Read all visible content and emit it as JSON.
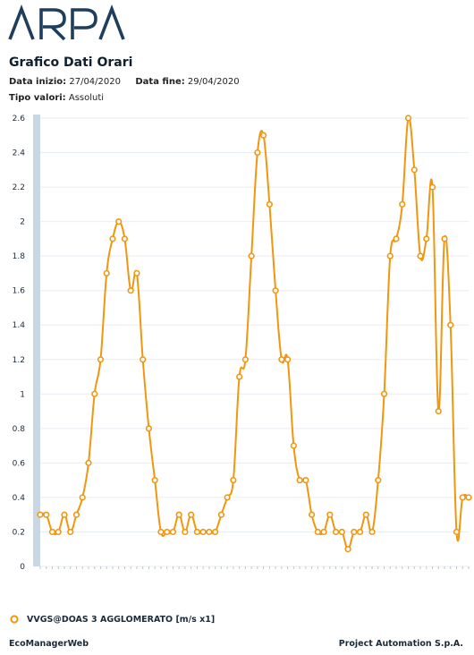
{
  "header": {
    "logo_text": "ARPA",
    "title": "Grafico Dati Orari",
    "start_label": "Data inizio:",
    "start_value": "27/04/2020",
    "end_label": "Data fine:",
    "end_value": "29/04/2020",
    "type_label": "Tipo valori:",
    "type_value": "Assoluti"
  },
  "colors": {
    "series": "#f2960f",
    "grid": "#e6eef5",
    "axis_band": "#c9d7e4",
    "text": "#1a2a3a"
  },
  "chart_data": {
    "type": "line",
    "title": "",
    "xlabel": "",
    "ylabel": "",
    "ylim": [
      0,
      2.6
    ],
    "yticks": [
      "0",
      "0.2",
      "0.4",
      "0.6",
      "0.8",
      "1",
      "1.2",
      "1.4",
      "1.6",
      "1.8",
      "2",
      "2.2",
      "2.4",
      "2.6"
    ],
    "grid": true,
    "legend_position": "bottom-left",
    "x_start": "27/04/2020 00:00",
    "x_step": "1 hour",
    "series": [
      {
        "name": "VVGS@DOAS 3 AGGLOMERATO [m/s x1]",
        "values": [
          0.3,
          0.3,
          0.2,
          0.2,
          0.3,
          0.2,
          0.3,
          0.4,
          0.6,
          1.0,
          1.2,
          1.7,
          1.9,
          2.0,
          1.9,
          1.6,
          1.7,
          1.2,
          0.8,
          0.5,
          0.2,
          0.2,
          0.2,
          0.3,
          0.2,
          0.3,
          0.2,
          0.2,
          0.2,
          0.2,
          0.3,
          0.4,
          0.5,
          1.1,
          1.2,
          1.8,
          2.4,
          2.5,
          2.1,
          1.6,
          1.2,
          1.2,
          0.7,
          0.5,
          0.5,
          0.3,
          0.2,
          0.2,
          0.3,
          0.2,
          0.2,
          0.1,
          0.2,
          0.2,
          0.3,
          0.2,
          0.5,
          1.0,
          1.8,
          1.9,
          2.1,
          2.6,
          2.3,
          1.8,
          1.9,
          2.2,
          0.9,
          1.9,
          1.4,
          0.2,
          0.4,
          0.4
        ]
      }
    ]
  },
  "legend": {
    "label": "VVGS@DOAS 3 AGGLOMERATO [m/s x1]"
  },
  "footer": {
    "left": "EcoManagerWeb",
    "right": "Project Automation S.p.A."
  }
}
